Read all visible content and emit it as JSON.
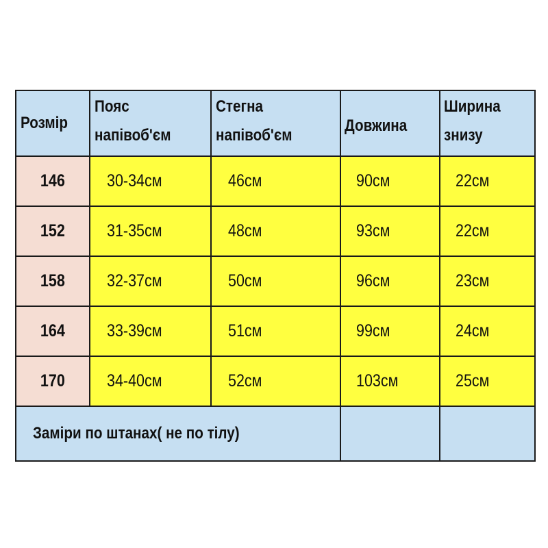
{
  "colors": {
    "header": "#c6dff2",
    "size_column": "#f5ddd3",
    "values": "#ffff40"
  },
  "headers": [
    {
      "line1": "Розмір",
      "line2": ""
    },
    {
      "line1": "Пояс",
      "line2": "напівоб'єм"
    },
    {
      "line1": "Стегна",
      "line2": "напівоб'єм"
    },
    {
      "line1": "Довжина",
      "line2": ""
    },
    {
      "line1": "Ширина",
      "line2": "знизу"
    }
  ],
  "rows": [
    {
      "size": "146",
      "waist": "30-34см",
      "hips": "46см",
      "length": "90см",
      "bottom": "22см"
    },
    {
      "size": "152",
      "waist": "31-35см",
      "hips": "48см",
      "length": "93см",
      "bottom": "22см"
    },
    {
      "size": "158",
      "waist": "32-37см",
      "hips": "50см",
      "length": "96см",
      "bottom": "23см"
    },
    {
      "size": "164",
      "waist": "33-39см",
      "hips": "51см",
      "length": "99см",
      "bottom": "24см"
    },
    {
      "size": "170",
      "waist": "34-40см",
      "hips": "52см",
      "length": "103см",
      "bottom": "25см"
    }
  ],
  "note": "Заміри по штанах( не по тілу)"
}
